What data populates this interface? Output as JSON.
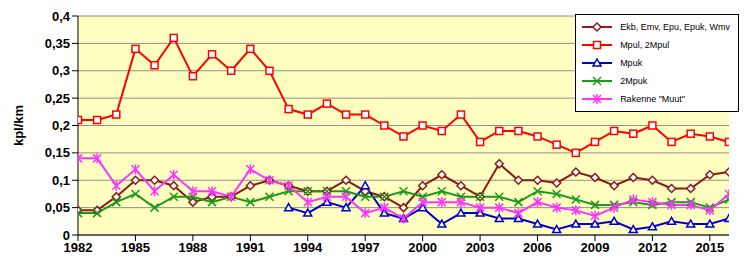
{
  "chart_data": {
    "type": "line",
    "y_label": "kpl/km",
    "x": [
      1982,
      1983,
      1984,
      1985,
      1986,
      1987,
      1988,
      1989,
      1990,
      1991,
      1992,
      1993,
      1994,
      1995,
      1996,
      1997,
      1998,
      1999,
      2000,
      2001,
      2002,
      2003,
      2004,
      2005,
      2006,
      2007,
      2008,
      2009,
      2010,
      2011,
      2012,
      2013,
      2014,
      2015,
      2016
    ],
    "xlim": [
      1982,
      2016
    ],
    "xticks": [
      1982,
      1985,
      1988,
      1991,
      1994,
      1997,
      2000,
      2003,
      2006,
      2009,
      2012,
      2015
    ],
    "ylim": [
      0,
      0.4
    ],
    "yticks": [
      0,
      {
        "value": 0.05,
        "label": "0,05"
      },
      {
        "value": 0.1,
        "label": "0,1"
      },
      {
        "value": 0.15,
        "label": "0,15"
      },
      {
        "value": 0.2,
        "label": "0,2"
      },
      {
        "value": 0.25,
        "label": "0,25"
      },
      {
        "value": 0.3,
        "label": "0,3"
      },
      {
        "value": 0.35,
        "label": "0,35"
      },
      {
        "value": 0.4,
        "label": "0,4"
      }
    ],
    "grid": true,
    "legend": "top right",
    "series": [
      {
        "name": "Ekb, Emv, Epu, Epuk, Wmv",
        "color": "#8b1a1a",
        "marker": "diamond",
        "values": [
          0.045,
          0.045,
          0.07,
          0.1,
          0.1,
          0.09,
          0.06,
          0.07,
          0.07,
          0.09,
          0.1,
          0.09,
          0.08,
          0.08,
          0.1,
          0.08,
          0.07,
          0.05,
          0.09,
          0.11,
          0.09,
          0.07,
          0.13,
          0.1,
          0.1,
          0.095,
          0.115,
          0.105,
          0.09,
          0.105,
          0.1,
          0.085,
          0.085,
          0.11,
          0.115
        ]
      },
      {
        "name": "Mpul, 2Mpul",
        "color": "#ff0000",
        "marker": "square",
        "values": [
          0.21,
          0.21,
          0.22,
          0.34,
          0.31,
          0.36,
          0.29,
          0.33,
          0.3,
          0.34,
          0.3,
          0.23,
          0.22,
          0.24,
          0.22,
          0.22,
          0.2,
          0.18,
          0.2,
          0.19,
          0.22,
          0.17,
          0.19,
          0.19,
          0.18,
          0.165,
          0.15,
          0.17,
          0.19,
          0.185,
          0.2,
          0.17,
          0.185,
          0.18,
          0.17
        ]
      },
      {
        "name": "Mpuk",
        "color": "#0000cc",
        "marker": "triangle",
        "values": [
          null,
          null,
          null,
          null,
          null,
          null,
          null,
          null,
          null,
          null,
          null,
          0.05,
          0.04,
          0.06,
          0.05,
          0.09,
          0.04,
          0.03,
          0.05,
          0.02,
          0.04,
          0.04,
          0.03,
          0.03,
          0.02,
          0.01,
          0.02,
          0.02,
          0.025,
          0.01,
          0.015,
          0.025,
          0.02,
          0.02,
          0.03
        ]
      },
      {
        "name": "2Mpuk",
        "color": "#1a9a1a",
        "marker": "x",
        "values": [
          0.04,
          0.04,
          0.06,
          0.075,
          0.05,
          0.07,
          0.07,
          0.06,
          0.07,
          0.06,
          0.07,
          0.08,
          0.08,
          0.08,
          0.08,
          0.07,
          0.07,
          0.08,
          0.07,
          0.08,
          0.07,
          0.07,
          0.07,
          0.06,
          0.08,
          0.075,
          0.065,
          0.055,
          0.055,
          0.06,
          0.055,
          0.06,
          0.06,
          0.05,
          0.065
        ]
      },
      {
        "name": "Rakenne \"Muut\"",
        "color": "#ff33ff",
        "marker": "star",
        "values": [
          0.14,
          0.14,
          0.09,
          0.12,
          0.08,
          0.11,
          0.08,
          0.08,
          0.07,
          0.12,
          0.1,
          0.09,
          0.06,
          0.07,
          0.07,
          0.04,
          0.05,
          0.03,
          0.06,
          0.06,
          0.06,
          0.05,
          0.05,
          0.04,
          0.06,
          0.05,
          0.045,
          0.035,
          0.05,
          0.065,
          0.06,
          0.055,
          0.055,
          0.045,
          0.075
        ]
      }
    ]
  }
}
